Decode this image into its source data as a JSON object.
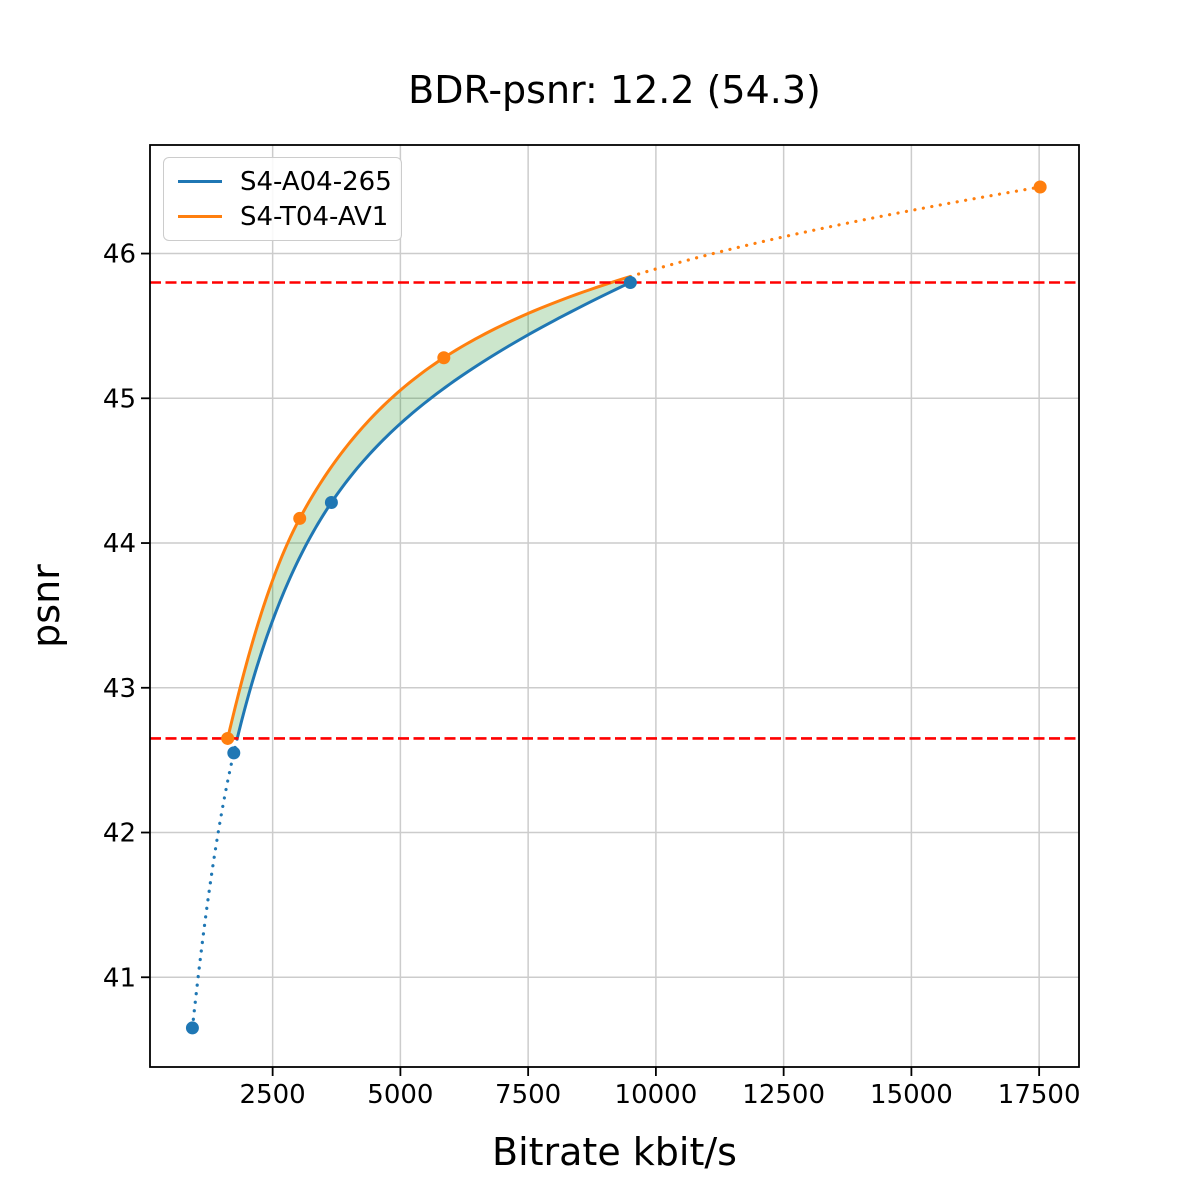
{
  "chart_data": {
    "type": "line",
    "title": "BDR-psnr: 12.2 (54.3)",
    "xlabel": "Bitrate kbit/s",
    "ylabel": "psnr",
    "xlim": [
      100,
      18280
    ],
    "ylim": [
      40.38,
      46.75
    ],
    "x_ticks": [
      2500,
      5000,
      7500,
      10000,
      12500,
      15000,
      17500
    ],
    "y_ticks": [
      41,
      42,
      43,
      44,
      45,
      46
    ],
    "grid": true,
    "grid_color": "#cccccc",
    "spine_color": "#000000",
    "legend_position": "upper left",
    "series": [
      {
        "name": "S4-A04-265",
        "color": "#1f77b4",
        "marker": "circle",
        "points": [
          [
            930,
            40.65
          ],
          [
            1740,
            42.55
          ],
          [
            3650,
            44.28
          ],
          [
            9500,
            45.8
          ]
        ]
      },
      {
        "name": "S4-T04-AV1",
        "color": "#ff7f0e",
        "marker": "circle",
        "points": [
          [
            1620,
            42.65
          ],
          [
            3030,
            44.17
          ],
          [
            5850,
            45.28
          ],
          [
            17520,
            46.46
          ]
        ]
      }
    ],
    "hlines": {
      "values": [
        45.8,
        42.65
      ],
      "color": "#ff0000",
      "style": "dashed"
    },
    "fill_between": {
      "color": "#008000",
      "opacity": 0.2,
      "lower_psnr": 42.65,
      "upper_x": 9500
    }
  }
}
